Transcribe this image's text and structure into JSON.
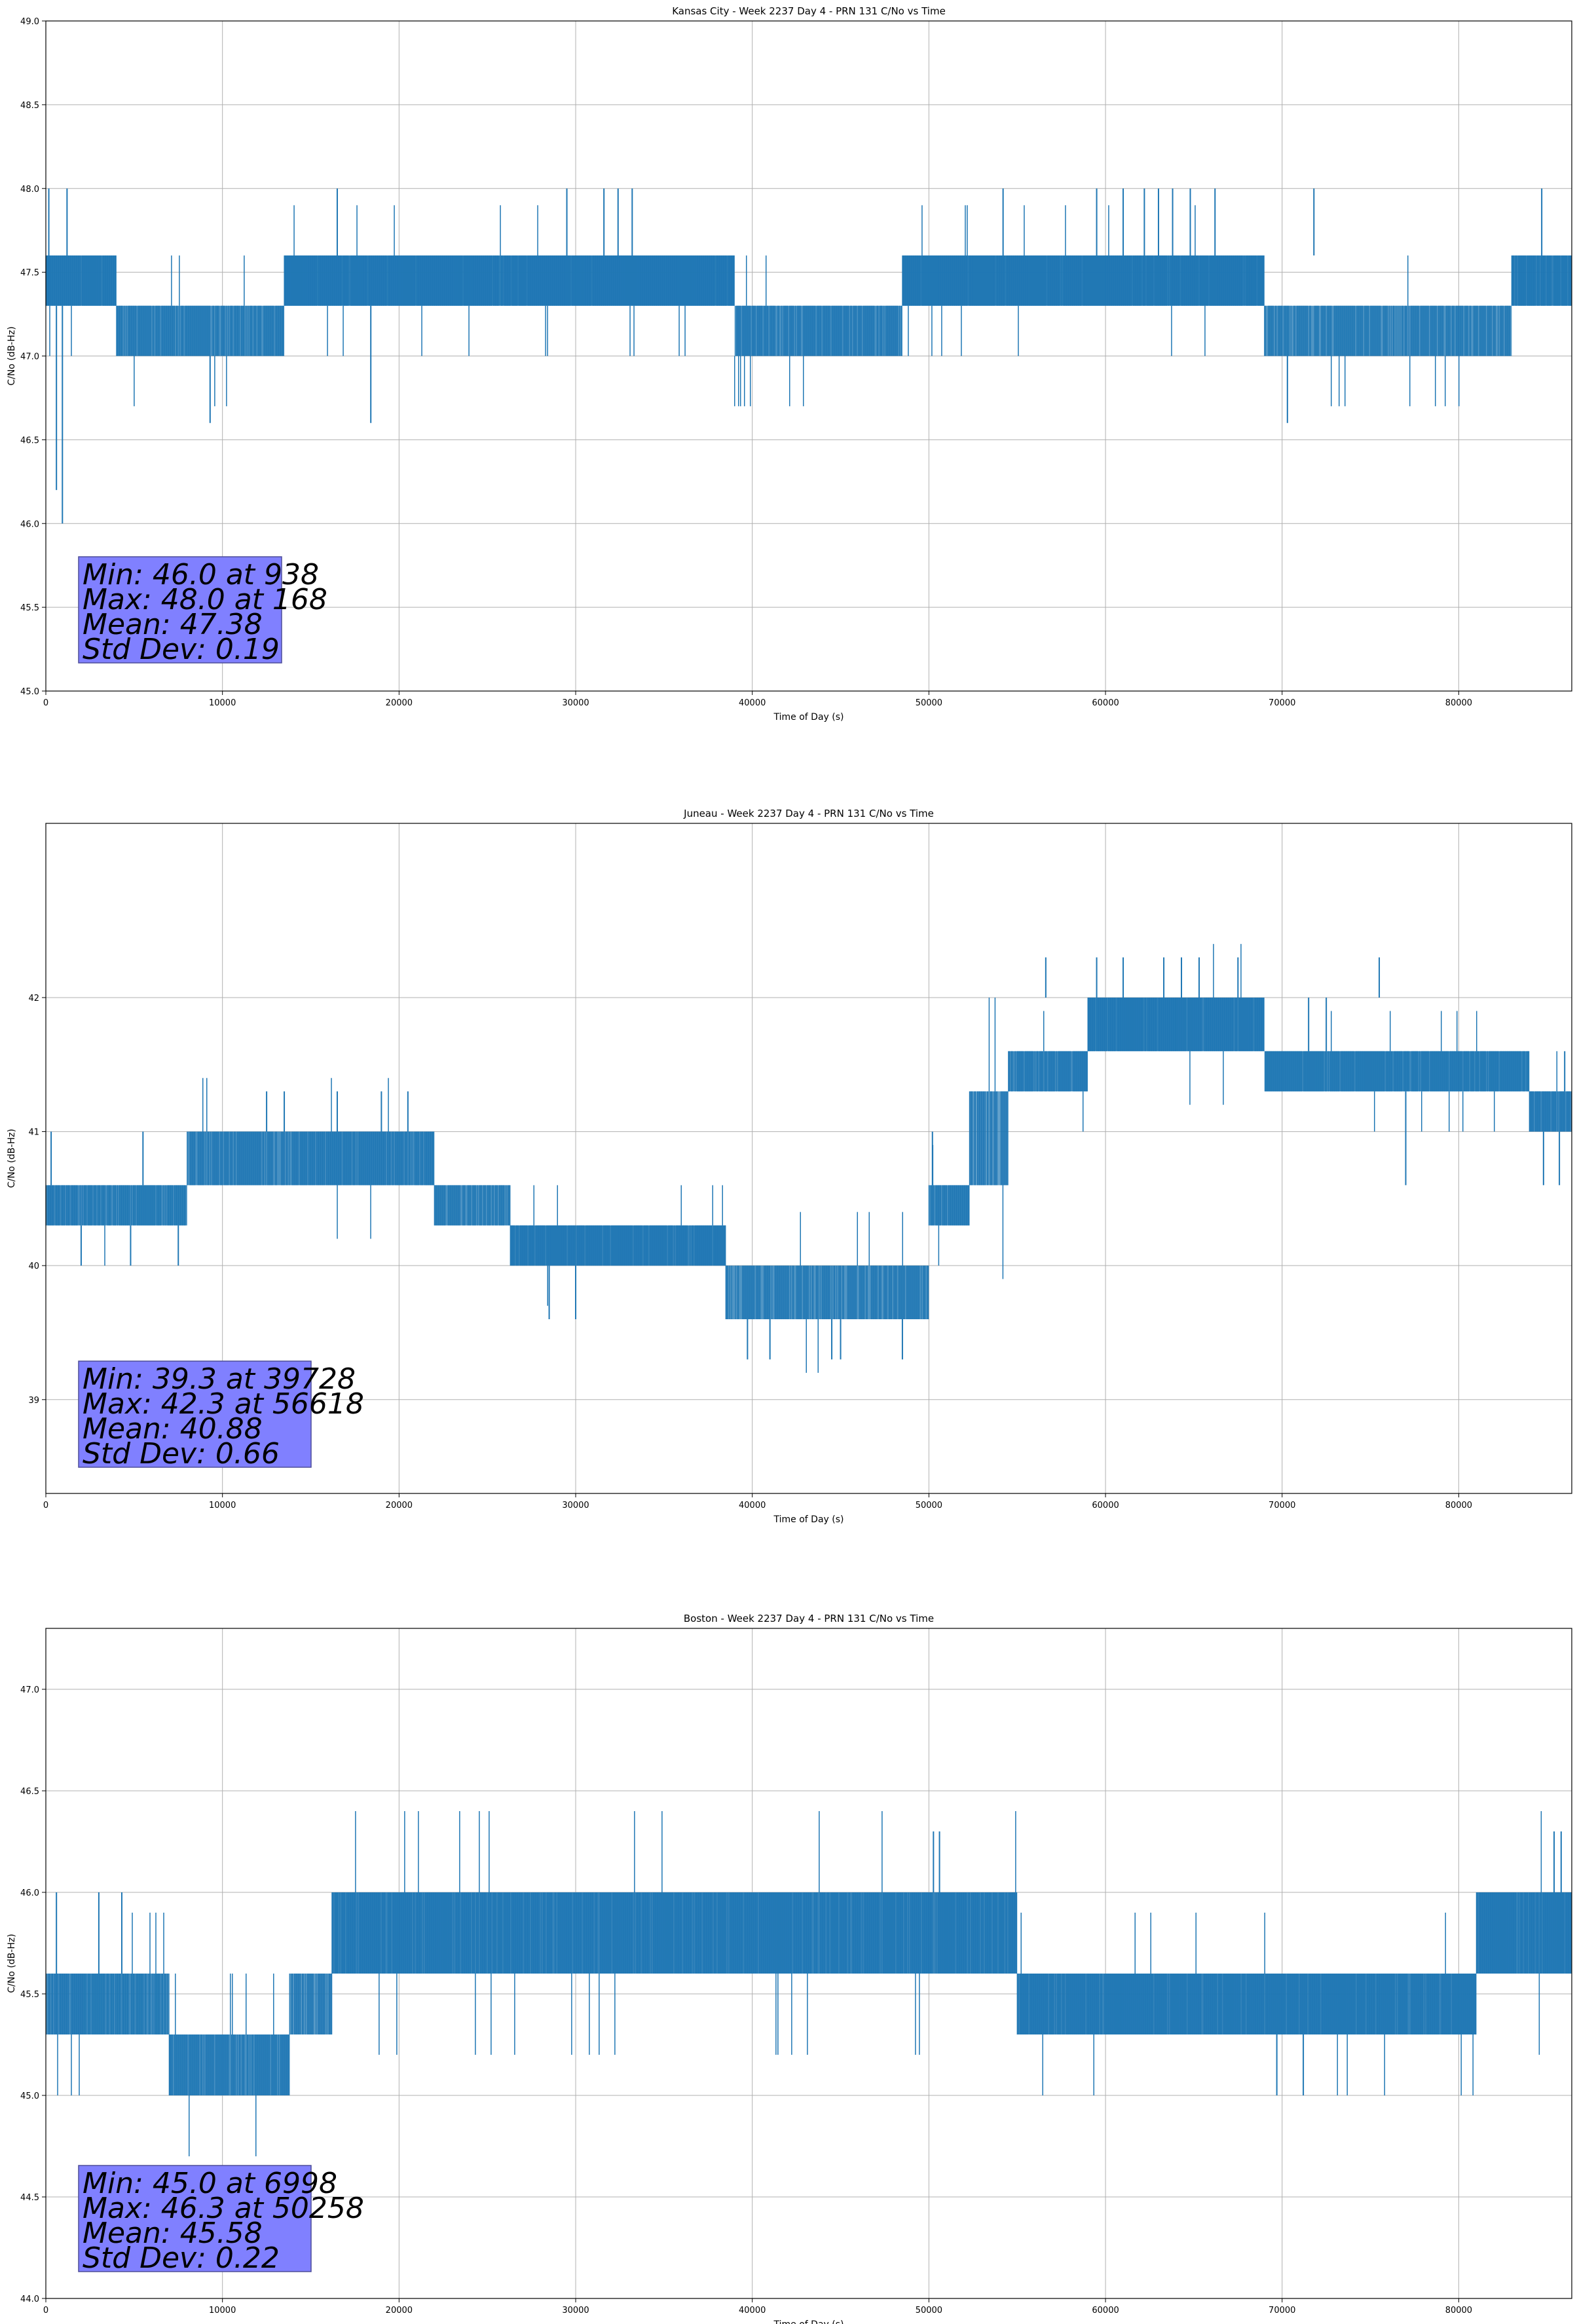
{
  "chart_data": [
    {
      "type": "line",
      "title": "Kansas City - Week 2237 Day 4 - PRN 131 C/No vs Time",
      "xlabel": "Time of Day (s)",
      "ylabel": "C/No (dB-Hz)",
      "xlim": [
        0,
        86400
      ],
      "ylim": [
        45.0,
        49.0
      ],
      "xticks": [
        0,
        10000,
        20000,
        30000,
        40000,
        50000,
        60000,
        70000,
        80000
      ],
      "yticks": [
        45.0,
        45.5,
        46.0,
        46.5,
        47.0,
        47.5,
        48.0,
        48.5,
        49.0
      ],
      "ytick_labels": [
        "45.0",
        "45.5",
        "46.0",
        "46.5",
        "47.0",
        "47.5",
        "48.0",
        "48.5",
        "49.0"
      ],
      "grid": true,
      "series_color": "#1f77b4",
      "stats": [
        "Min: 46.0 at 938",
        "Max: 48.0 at 168",
        "Mean: 47.38",
        "Std Dev: 0.19"
      ],
      "segments": [
        {
          "x": [
            0,
            4000
          ],
          "band": [
            47.3,
            47.6
          ],
          "frac": 0.92
        },
        {
          "x": [
            4000,
            13500
          ],
          "band": [
            47.0,
            47.3
          ],
          "frac": 0.82
        },
        {
          "x": [
            13500,
            39000
          ],
          "band": [
            47.3,
            47.6
          ],
          "frac": 0.95
        },
        {
          "x": [
            39000,
            48500
          ],
          "band": [
            47.0,
            47.3
          ],
          "frac": 0.82
        },
        {
          "x": [
            48500,
            69000
          ],
          "band": [
            47.3,
            47.6
          ],
          "frac": 0.95
        },
        {
          "x": [
            69000,
            83000
          ],
          "band": [
            47.0,
            47.3
          ],
          "frac": 0.78
        },
        {
          "x": [
            83000,
            86400
          ],
          "band": [
            47.3,
            47.6
          ],
          "frac": 0.92
        }
      ],
      "spikes": [
        {
          "x": 168,
          "y0": 47.3,
          "y1": 48.0
        },
        {
          "x": 938,
          "y0": 47.3,
          "y1": 46.0
        },
        {
          "x": 600,
          "y0": 47.3,
          "y1": 46.2
        },
        {
          "x": 1200,
          "y0": 47.6,
          "y1": 48.0
        },
        {
          "x": 9300,
          "y0": 47.0,
          "y1": 46.6
        },
        {
          "x": 16500,
          "y0": 47.6,
          "y1": 48.0
        },
        {
          "x": 18400,
          "y0": 47.3,
          "y1": 46.6
        },
        {
          "x": 29500,
          "y0": 47.6,
          "y1": 48.0
        },
        {
          "x": 31600,
          "y0": 47.6,
          "y1": 48.0
        },
        {
          "x": 32400,
          "y0": 47.6,
          "y1": 48.0
        },
        {
          "x": 33200,
          "y0": 47.6,
          "y1": 48.0
        },
        {
          "x": 54200,
          "y0": 47.6,
          "y1": 48.0
        },
        {
          "x": 59500,
          "y0": 47.6,
          "y1": 48.0
        },
        {
          "x": 61000,
          "y0": 47.6,
          "y1": 48.0
        },
        {
          "x": 62200,
          "y0": 47.6,
          "y1": 48.0
        },
        {
          "x": 63000,
          "y0": 47.6,
          "y1": 48.0
        },
        {
          "x": 63800,
          "y0": 47.6,
          "y1": 48.0
        },
        {
          "x": 64800,
          "y0": 47.6,
          "y1": 48.0
        },
        {
          "x": 66200,
          "y0": 47.6,
          "y1": 48.0
        },
        {
          "x": 70300,
          "y0": 47.0,
          "y1": 46.6
        },
        {
          "x": 71800,
          "y0": 47.6,
          "y1": 48.0
        },
        {
          "x": 84700,
          "y0": 47.6,
          "y1": 48.0
        }
      ]
    },
    {
      "type": "line",
      "title": "Juneau - Week 2237 Day 4 - PRN 131 C/No vs Time",
      "xlabel": "Time of Day (s)",
      "ylabel": "C/No (dB-Hz)",
      "xlim": [
        0,
        86400
      ],
      "ylim": [
        38.3,
        43.3
      ],
      "xticks": [
        0,
        10000,
        20000,
        30000,
        40000,
        50000,
        60000,
        70000,
        80000
      ],
      "yticks": [
        39,
        40,
        41,
        42
      ],
      "ytick_labels": [
        "39",
        "40",
        "41",
        "42"
      ],
      "grid": true,
      "series_color": "#1f77b4",
      "stats": [
        "Min: 39.3 at 39728",
        "Max: 42.3 at 56618",
        "Mean: 40.88",
        "Std Dev: 0.66"
      ],
      "segments": [
        {
          "x": [
            0,
            8000
          ],
          "band": [
            40.3,
            40.6
          ],
          "frac": 0.85
        },
        {
          "x": [
            8000,
            14500
          ],
          "band": [
            40.6,
            41.0
          ],
          "frac": 0.82
        },
        {
          "x": [
            14500,
            22000
          ],
          "band": [
            40.6,
            41.0
          ],
          "frac": 0.85
        },
        {
          "x": [
            22000,
            26300
          ],
          "band": [
            40.3,
            40.6
          ],
          "frac": 0.8
        },
        {
          "x": [
            26300,
            38500
          ],
          "band": [
            40.0,
            40.3
          ],
          "frac": 0.9
        },
        {
          "x": [
            38500,
            50000
          ],
          "band": [
            39.6,
            40.0
          ],
          "frac": 0.78
        },
        {
          "x": [
            50000,
            52300
          ],
          "band": [
            40.3,
            40.6
          ],
          "frac": 0.82
        },
        {
          "x": [
            52300,
            54500
          ],
          "band": [
            40.6,
            41.3
          ],
          "frac": 0.7
        },
        {
          "x": [
            54500,
            59000
          ],
          "band": [
            41.3,
            41.6
          ],
          "frac": 0.85
        },
        {
          "x": [
            59000,
            64000
          ],
          "band": [
            41.6,
            42.0
          ],
          "frac": 0.92
        },
        {
          "x": [
            64000,
            69000
          ],
          "band": [
            41.6,
            42.0
          ],
          "frac": 0.9
        },
        {
          "x": [
            69000,
            84000
          ],
          "band": [
            41.3,
            41.6
          ],
          "frac": 0.88
        },
        {
          "x": [
            84000,
            86400
          ],
          "band": [
            41.0,
            41.3
          ],
          "frac": 0.85
        }
      ],
      "spikes": [
        {
          "x": 300,
          "y0": 40.6,
          "y1": 41.0
        },
        {
          "x": 5500,
          "y0": 40.6,
          "y1": 41.0
        },
        {
          "x": 2000,
          "y0": 40.3,
          "y1": 40.0
        },
        {
          "x": 4800,
          "y0": 40.3,
          "y1": 40.0
        },
        {
          "x": 7500,
          "y0": 40.3,
          "y1": 40.0
        },
        {
          "x": 12500,
          "y0": 41.0,
          "y1": 41.3
        },
        {
          "x": 13500,
          "y0": 41.0,
          "y1": 41.3
        },
        {
          "x": 16500,
          "y0": 41.0,
          "y1": 41.3
        },
        {
          "x": 19000,
          "y0": 41.0,
          "y1": 41.3
        },
        {
          "x": 20500,
          "y0": 41.0,
          "y1": 41.3
        },
        {
          "x": 28500,
          "y0": 40.0,
          "y1": 39.6
        },
        {
          "x": 30000,
          "y0": 40.0,
          "y1": 39.6
        },
        {
          "x": 39728,
          "y0": 39.6,
          "y1": 39.3
        },
        {
          "x": 41000,
          "y0": 39.6,
          "y1": 39.3
        },
        {
          "x": 44500,
          "y0": 39.6,
          "y1": 39.3
        },
        {
          "x": 45000,
          "y0": 39.6,
          "y1": 39.3
        },
        {
          "x": 48500,
          "y0": 39.6,
          "y1": 39.3
        },
        {
          "x": 50200,
          "y0": 40.6,
          "y1": 41.0
        },
        {
          "x": 56618,
          "y0": 42.0,
          "y1": 42.3
        },
        {
          "x": 59500,
          "y0": 42.0,
          "y1": 42.3
        },
        {
          "x": 61000,
          "y0": 42.0,
          "y1": 42.3
        },
        {
          "x": 63300,
          "y0": 42.0,
          "y1": 42.3
        },
        {
          "x": 64300,
          "y0": 42.0,
          "y1": 42.3
        },
        {
          "x": 65300,
          "y0": 42.0,
          "y1": 42.3
        },
        {
          "x": 67500,
          "y0": 42.0,
          "y1": 42.3
        },
        {
          "x": 71500,
          "y0": 42.0,
          "y1": 41.6
        },
        {
          "x": 72500,
          "y0": 42.0,
          "y1": 41.6
        },
        {
          "x": 75500,
          "y0": 42.0,
          "y1": 42.3
        },
        {
          "x": 77000,
          "y0": 41.3,
          "y1": 40.6
        },
        {
          "x": 84800,
          "y0": 41.0,
          "y1": 40.6
        },
        {
          "x": 85700,
          "y0": 41.0,
          "y1": 40.6
        },
        {
          "x": 86000,
          "y0": 41.3,
          "y1": 41.6
        }
      ]
    },
    {
      "type": "line",
      "title": "Boston - Week 2237 Day 4 - PRN 131 C/No vs Time",
      "xlabel": "Time of Day (s)",
      "ylabel": "C/No (dB-Hz)",
      "xlim": [
        0,
        86400
      ],
      "ylim": [
        44.0,
        47.3
      ],
      "xticks": [
        0,
        10000,
        20000,
        30000,
        40000,
        50000,
        60000,
        70000,
        80000
      ],
      "yticks": [
        44.0,
        44.5,
        45.0,
        45.5,
        46.0,
        46.5,
        47.0
      ],
      "ytick_labels": [
        "44.0",
        "44.5",
        "45.0",
        "45.5",
        "46.0",
        "46.5",
        "47.0"
      ],
      "grid": true,
      "series_color": "#1f77b4",
      "stats": [
        "Min: 45.0 at 6998",
        "Max: 46.3 at 50258",
        "Mean: 45.58",
        "Std Dev: 0.22"
      ],
      "segments": [
        {
          "x": [
            0,
            7000
          ],
          "band": [
            45.3,
            45.6
          ],
          "frac": 0.85
        },
        {
          "x": [
            7000,
            13800
          ],
          "band": [
            45.0,
            45.3
          ],
          "frac": 0.82
        },
        {
          "x": [
            13800,
            16200
          ],
          "band": [
            45.3,
            45.6
          ],
          "frac": 0.75
        },
        {
          "x": [
            16200,
            55000
          ],
          "band": [
            45.6,
            46.0
          ],
          "frac": 0.9
        },
        {
          "x": [
            55000,
            81000
          ],
          "band": [
            45.3,
            45.6
          ],
          "frac": 0.9
        },
        {
          "x": [
            81000,
            86400
          ],
          "band": [
            45.6,
            46.0
          ],
          "frac": 0.92
        }
      ],
      "spikes": [
        {
          "x": 600,
          "y0": 45.6,
          "y1": 46.0
        },
        {
          "x": 3000,
          "y0": 45.6,
          "y1": 46.0
        },
        {
          "x": 4300,
          "y0": 45.6,
          "y1": 46.0
        },
        {
          "x": 6998,
          "y0": 45.3,
          "y1": 45.0
        },
        {
          "x": 50258,
          "y0": 46.0,
          "y1": 46.3
        },
        {
          "x": 50600,
          "y0": 46.0,
          "y1": 46.3
        },
        {
          "x": 69700,
          "y0": 45.3,
          "y1": 45.0
        },
        {
          "x": 71200,
          "y0": 45.3,
          "y1": 45.0
        },
        {
          "x": 85400,
          "y0": 46.0,
          "y1": 46.3
        },
        {
          "x": 85800,
          "y0": 46.0,
          "y1": 46.3
        }
      ]
    }
  ]
}
